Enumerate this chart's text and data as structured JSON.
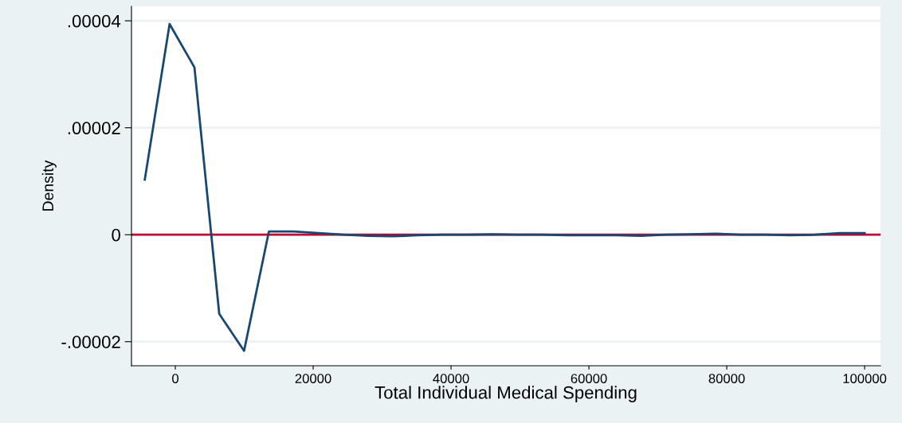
{
  "chart_data": {
    "type": "line",
    "xlabel": "Total Individual Medical Spending",
    "ylabel": "Density",
    "x": [
      -4430,
      -829,
      2772,
      6373,
      9974,
      13575,
      17176,
      20777,
      24378,
      27979,
      31580,
      35181,
      38782,
      42383,
      45984,
      49585,
      53186,
      56787,
      60388,
      63989,
      67590,
      71191,
      74792,
      78393,
      81994,
      85595,
      89196,
      92797,
      96398,
      99999
    ],
    "series": [
      {
        "color": "#1a476f",
        "values": [
          1.03e-05,
          3.94e-05,
          3.13e-05,
          -1.48e-05,
          -2.17e-05,
          6e-07,
          6e-07,
          3e-07,
          0,
          -2e-07,
          -3e-07,
          -1e-07,
          0,
          0,
          1e-07,
          0,
          0,
          -1e-07,
          -1e-07,
          -1e-07,
          -2e-07,
          0,
          1e-07,
          2e-07,
          0,
          0,
          -1e-07,
          0,
          3e-07,
          3e-07
        ]
      }
    ],
    "xlim": [
      -6360,
      102300
    ],
    "ylim": [
      -2.45e-05,
      4.27e-05
    ],
    "xticks": [
      0,
      20000,
      40000,
      60000,
      80000,
      100000
    ],
    "yticks": [
      {
        "value": -2e-05,
        "label": "-.00002"
      },
      {
        "value": 0,
        "label": "0"
      },
      {
        "value": 2e-05,
        "label": ".00002"
      },
      {
        "value": 4e-05,
        "label": ".00004"
      }
    ],
    "ref_lines": [
      {
        "axis": "y",
        "value": 0,
        "color": "#c10534"
      }
    ],
    "grid": "y",
    "legend": false,
    "marker": "none",
    "line_style": "solid"
  }
}
